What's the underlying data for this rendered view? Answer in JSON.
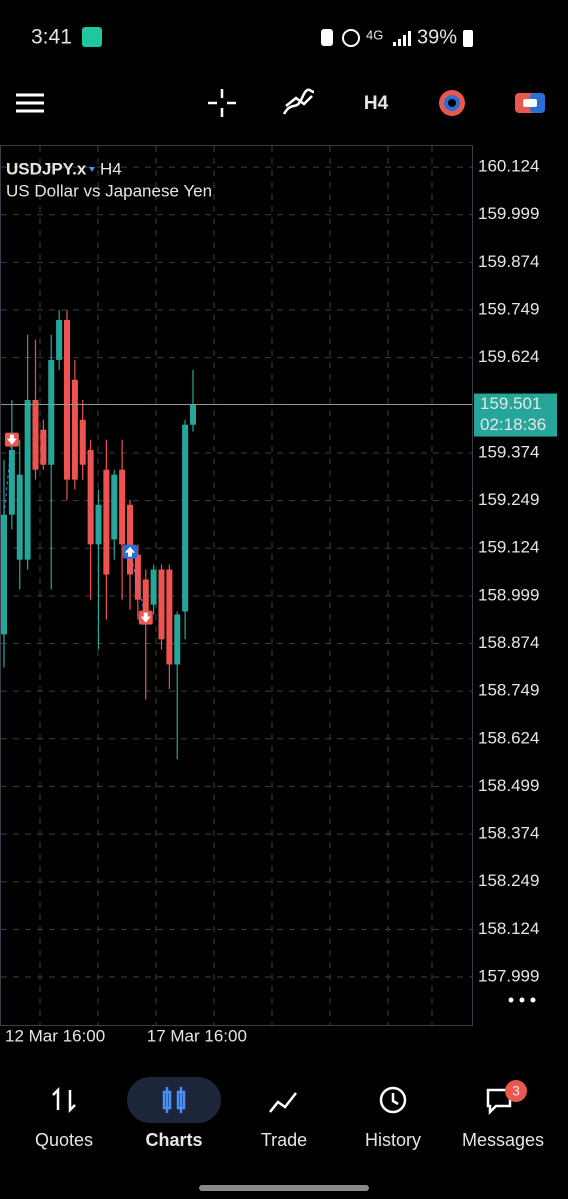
{
  "status_bar": {
    "time": "3:41",
    "battery": "39%"
  },
  "toolbar": {
    "timeframe": "H4"
  },
  "chart_data": {
    "type": "candlestick",
    "symbol": "USDJPY.x",
    "timeframe": "H4",
    "description": "US Dollar vs Japanese Yen",
    "categories": [
      "12 Mar 16:00",
      null,
      null,
      null,
      null,
      null,
      null,
      null,
      null,
      null,
      null,
      null,
      null,
      null,
      null,
      null,
      null,
      null,
      "17 Mar 16:00",
      null,
      null,
      null,
      null,
      null,
      null
    ],
    "open": [
      158.898,
      159.212,
      159.094,
      159.094,
      159.513,
      159.435,
      159.343,
      159.618,
      159.723,
      159.566,
      159.461,
      159.382,
      159.134,
      159.33,
      159.147,
      159.33,
      159.238,
      159.107,
      159.042,
      158.976,
      159.068,
      159.068,
      158.819,
      158.958,
      159.448
    ],
    "high": [
      159.356,
      159.513,
      159.409,
      159.684,
      159.671,
      159.461,
      159.684,
      159.749,
      159.749,
      159.618,
      159.513,
      159.409,
      159.278,
      159.409,
      159.33,
      159.409,
      159.251,
      159.134,
      159.068,
      159.081,
      159.081,
      159.081,
      158.958,
      159.461,
      159.592
    ],
    "low": [
      158.811,
      159.173,
      159.016,
      159.068,
      159.304,
      159.33,
      159.016,
      159.592,
      159.251,
      159.278,
      159.304,
      158.989,
      158.858,
      158.937,
      159.094,
      158.989,
      158.963,
      158.937,
      158.727,
      158.95,
      158.858,
      158.754,
      158.57,
      158.885,
      159.43
    ],
    "close": [
      159.212,
      159.382,
      159.317,
      159.513,
      159.33,
      159.343,
      159.618,
      159.723,
      159.304,
      159.304,
      159.343,
      159.134,
      159.238,
      159.055,
      159.317,
      159.134,
      159.055,
      158.989,
      158.958,
      159.068,
      158.885,
      158.819,
      158.95,
      159.448,
      159.501
    ],
    "up_color": "#26a69a",
    "down_color": "#ef5350",
    "ylim": [
      157.873,
      160.182
    ],
    "yticks": [
      160.124,
      159.999,
      159.874,
      159.749,
      159.624,
      159.374,
      159.249,
      159.124,
      158.999,
      158.874,
      158.749,
      158.624,
      158.499,
      158.374,
      158.249,
      158.124,
      157.999
    ],
    "grid": true,
    "current_price": 159.501,
    "countdown": "02:18:36",
    "sell_arrows": [
      {
        "index": 1,
        "price": 159.409
      },
      {
        "index": 18,
        "price": 158.942
      }
    ],
    "buy_arrows": [
      {
        "index": 16,
        "price": 159.115
      }
    ]
  },
  "nav": {
    "items": [
      "Quotes",
      "Charts",
      "Trade",
      "History",
      "Messages"
    ],
    "active": 1,
    "badge": 3
  }
}
